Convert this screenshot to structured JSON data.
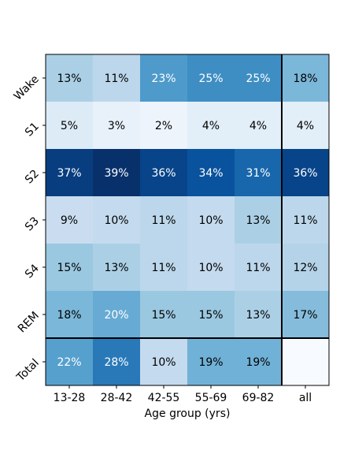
{
  "chart_data": {
    "type": "heatmap",
    "title": "",
    "xlabel": "Age group  (yrs)",
    "ylabel": "",
    "colormap": "Blues",
    "x_categories": [
      "13-28",
      "28-42",
      "42-55",
      "55-69",
      "69-82",
      "all"
    ],
    "y_categories": [
      "Wake",
      "S1",
      "S2",
      "S3",
      "S4",
      "REM",
      "Total"
    ],
    "values": [
      [
        13,
        11,
        23,
        25,
        25,
        18
      ],
      [
        5,
        3,
        2,
        4,
        4,
        4
      ],
      [
        37,
        39,
        36,
        34,
        31,
        36
      ],
      [
        9,
        10,
        11,
        10,
        13,
        11
      ],
      [
        15,
        13,
        11,
        10,
        11,
        12
      ],
      [
        18,
        20,
        15,
        15,
        13,
        17
      ],
      [
        22,
        28,
        10,
        19,
        19,
        null
      ]
    ],
    "cell_labels": [
      [
        "13%",
        "11%",
        "23%",
        "25%",
        "25%",
        "18%"
      ],
      [
        "5%",
        "3%",
        "2%",
        "4%",
        "4%",
        "4%"
      ],
      [
        "37%",
        "39%",
        "36%",
        "34%",
        "31%",
        "36%"
      ],
      [
        "9%",
        "10%",
        "11%",
        "10%",
        "13%",
        "11%"
      ],
      [
        "15%",
        "13%",
        "11%",
        "10%",
        "11%",
        "12%"
      ],
      [
        "18%",
        "20%",
        "15%",
        "15%",
        "13%",
        "17%"
      ],
      [
        "22%",
        "28%",
        "10%",
        "19%",
        "19%",
        ""
      ]
    ],
    "separators": "bold lines before last column and before last row",
    "grid": false,
    "legend": "none"
  }
}
